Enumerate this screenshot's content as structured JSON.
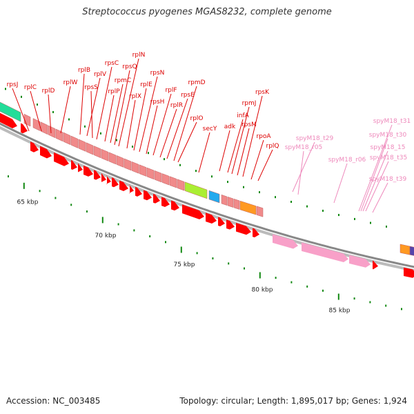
{
  "title": "Streptococcus pyogenes MGAS8232, complete genome",
  "footer": {
    "accession": "Accession: NC_003485",
    "summary": "Topology: circular; Length: 1,895,017 bp; Genes: 1,924"
  },
  "colors": {
    "gene_label": "#dd0000",
    "rna_label": "#ee88bb",
    "cds_forward": "#ff0000",
    "rna_feature": "#f8a0c8",
    "backbone": "#888888",
    "tick": "#118811",
    "operon_box": "#f08a8a",
    "secY_box": "#aaee33",
    "adk_box": "#22aaee",
    "rpoA_box": "#ff9922",
    "left_box": "#22dd99"
  },
  "axis": {
    "unit": "kbp",
    "major_labels": [
      "65 kbp",
      "70 kbp",
      "75 kbp",
      "80 kbp",
      "85 kbp"
    ]
  },
  "gene_labels": [
    "rpsJ",
    "rplC",
    "rplD",
    "rplW",
    "rplB",
    "rplV",
    "rpsS",
    "rpsC",
    "rplP",
    "rpmC",
    "rpsQ",
    "rplN",
    "rplX",
    "rplE",
    "rpsN",
    "rpsH",
    "rplF",
    "rplR",
    "rpsE",
    "rpmD",
    "rplO",
    "secY",
    "adk",
    "infA",
    "rpmJ",
    "rpsM",
    "rpsK",
    "rpoA",
    "rplQ"
  ],
  "rna_labels": [
    "spyM18_t29",
    "spyM18_r05",
    "spyM18_r06",
    "spyM18_t31",
    "spyM18_t30",
    "spyM18_15",
    "spyM18_t35",
    "spyM18_t39"
  ]
}
